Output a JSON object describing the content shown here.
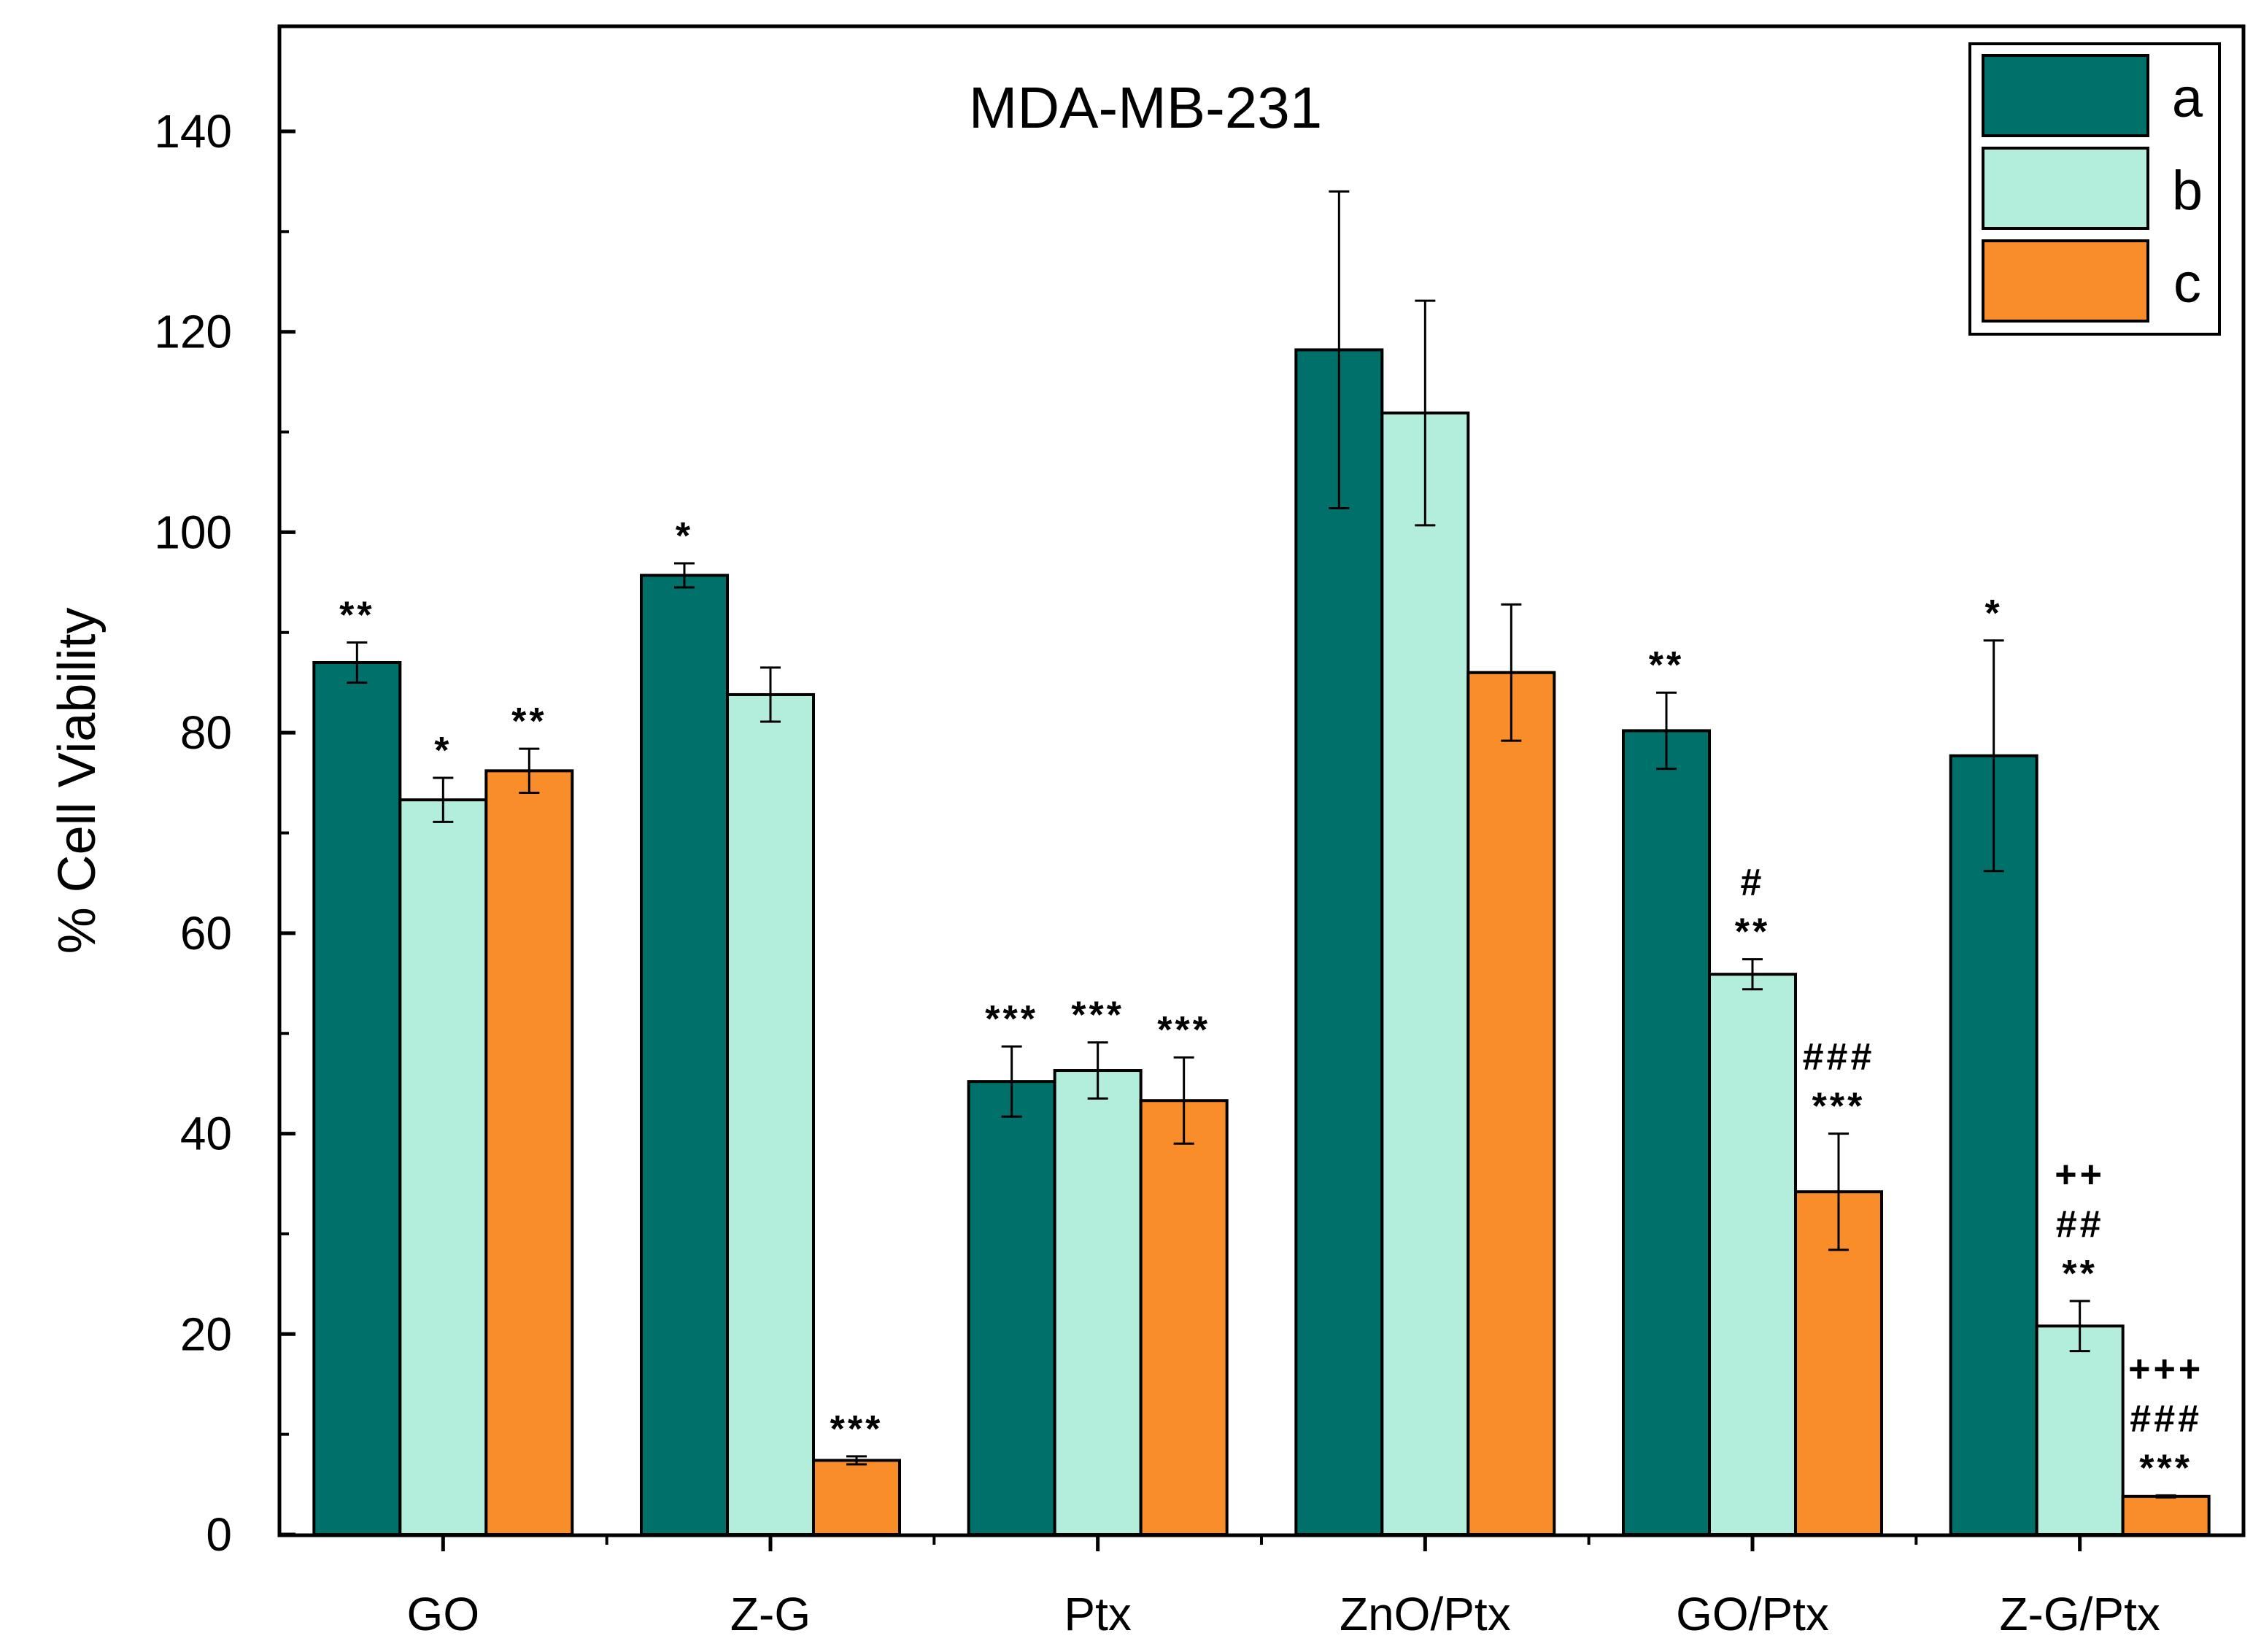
{
  "chart_data": {
    "type": "bar",
    "title": "MDA-MB-231",
    "xlabel": "",
    "ylabel": "% Cell Viability",
    "ylim": [
      0,
      150
    ],
    "yticks": [
      0,
      20,
      40,
      60,
      80,
      100,
      120,
      140
    ],
    "categories": [
      "GO",
      "Z-G",
      "Ptx",
      "ZnO/Ptx",
      "GO/Ptx",
      "Z-G/Ptx"
    ],
    "series": [
      {
        "name": "a",
        "color": "#00706A",
        "values": [
          87,
          95.7,
          45.2,
          118.2,
          80.2,
          77.7
        ],
        "errors": [
          2.0,
          1.2,
          3.5,
          15.8,
          3.8,
          11.5
        ],
        "annotations": [
          [
            "**"
          ],
          [
            "*"
          ],
          [
            "***"
          ],
          [],
          [
            "**"
          ],
          [
            "*"
          ]
        ]
      },
      {
        "name": "b",
        "color": "#B3EEDD",
        "values": [
          73.3,
          83.8,
          46.3,
          111.9,
          55.9,
          20.8
        ],
        "errors": [
          2.2,
          2.7,
          2.8,
          11.2,
          1.5,
          2.5
        ],
        "annotations": [
          [
            "*"
          ],
          [],
          [
            "***"
          ],
          [],
          [
            "#",
            "**"
          ],
          [
            "++",
            "##",
            "**"
          ]
        ]
      },
      {
        "name": "c",
        "color": "#F98D29",
        "values": [
          76.2,
          7.4,
          43.3,
          86.0,
          34.2,
          3.8
        ],
        "errors": [
          2.2,
          0.4,
          4.3,
          6.8,
          5.8,
          0.1
        ],
        "annotations": [
          [
            "**"
          ],
          [
            "***"
          ],
          [
            "***"
          ],
          [],
          [
            "###",
            "***"
          ],
          [
            "+++",
            "###",
            "***"
          ]
        ]
      }
    ],
    "legend_position": "top-right"
  }
}
